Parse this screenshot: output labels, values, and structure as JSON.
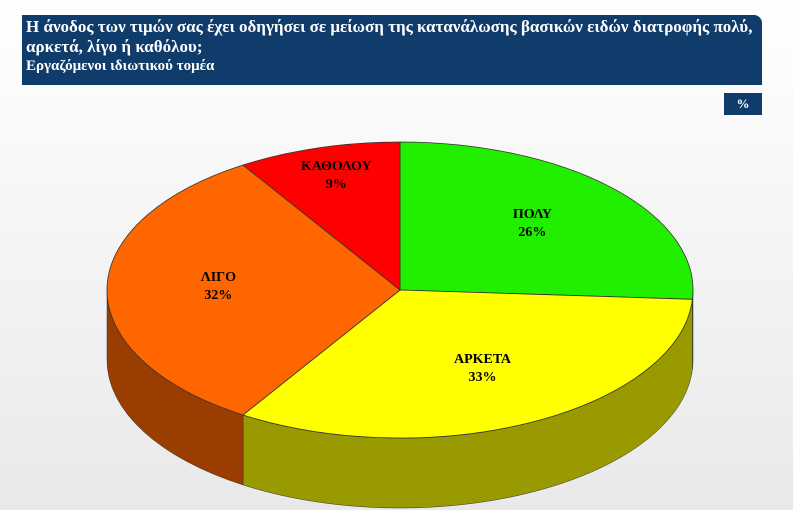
{
  "chart_data": {
    "type": "pie3d",
    "title": "Η άνοδος των τιμών σας έχει οδηγήσει σε μείωση της κατανάλωσης βασικών ειδών διατροφής πολύ, αρκετά, λίγο ή καθόλου;",
    "subtitle": "Εργαζόμενοι ιδιωτικού τομέα",
    "unit_badge": "%",
    "categories": [
      "ΠΟΛΥ",
      "ΑΡΚΕΤΑ",
      "ΛΙΓΟ",
      "ΚΑΘΟΛΟΥ"
    ],
    "values": [
      26,
      33,
      32,
      9
    ],
    "value_labels": [
      "26%",
      "33%",
      "32%",
      "9%"
    ],
    "colors": [
      "#22ee00",
      "#ffff00",
      "#ff6600",
      "#ff0000"
    ]
  }
}
